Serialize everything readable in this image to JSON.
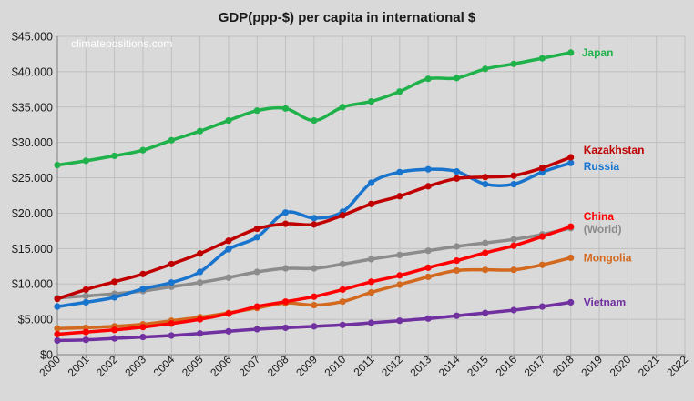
{
  "chart_data": {
    "type": "line",
    "title": "GDP(ppp-$) per capita in international $",
    "watermark": "climatepositions.com",
    "xlabel": "",
    "ylabel": "",
    "x": [
      2000,
      2001,
      2002,
      2003,
      2004,
      2005,
      2006,
      2007,
      2008,
      2009,
      2010,
      2011,
      2012,
      2013,
      2014,
      2015,
      2016,
      2017,
      2018
    ],
    "x_ticks": [
      "2000",
      "2001",
      "2002",
      "2003",
      "2004",
      "2005",
      "2006",
      "2007",
      "2008",
      "2009",
      "2010",
      "2011",
      "2012",
      "2013",
      "2014",
      "2015",
      "2016",
      "2017",
      "2018",
      "2019",
      "2020",
      "2021",
      "2022"
    ],
    "xlim": [
      2000,
      2022
    ],
    "ylim": [
      0,
      45000
    ],
    "y_ticks": [
      0,
      5000,
      10000,
      15000,
      20000,
      25000,
      30000,
      35000,
      40000,
      45000
    ],
    "y_tick_labels": [
      "$0",
      "$5.000",
      "$10.000",
      "$15.000",
      "$20.000",
      "$25.000",
      "$30.000",
      "$35.000",
      "$40.000",
      "$45.000"
    ],
    "grid": true,
    "legend": "end-labels",
    "series": [
      {
        "name": "Japan",
        "color": "#1fb24a",
        "values": [
          26800,
          27400,
          28100,
          28900,
          30300,
          31600,
          33100,
          34500,
          34800,
          33100,
          35000,
          35800,
          37200,
          39000,
          39100,
          40400,
          41100,
          41900,
          42700
        ]
      },
      {
        "name": "Kazakhstan",
        "color": "#c00000",
        "values": [
          7900,
          9200,
          10300,
          11400,
          12800,
          14300,
          16100,
          17800,
          18500,
          18400,
          19700,
          21300,
          22400,
          23800,
          24900,
          25100,
          25300,
          26400,
          27900
        ]
      },
      {
        "name": "Russia",
        "color": "#1874cd",
        "values": [
          6800,
          7400,
          8100,
          9300,
          10200,
          11700,
          14900,
          16600,
          20100,
          19300,
          20200,
          24300,
          25800,
          26200,
          25900,
          24100,
          24100,
          25800,
          27100
        ]
      },
      {
        "name": "China",
        "color": "#ff0000",
        "values": [
          2900,
          3200,
          3500,
          3900,
          4400,
          5000,
          5800,
          6800,
          7500,
          8200,
          9200,
          10300,
          11200,
          12300,
          13300,
          14400,
          15400,
          16700,
          18100
        ]
      },
      {
        "name": "(World)",
        "color": "#8c8c8c",
        "values": [
          8000,
          8300,
          8600,
          9000,
          9600,
          10200,
          10900,
          11700,
          12200,
          12200,
          12800,
          13500,
          14100,
          14700,
          15300,
          15800,
          16300,
          17000,
          17900
        ]
      },
      {
        "name": "Mongolia",
        "color": "#d2691e",
        "values": [
          3700,
          3800,
          4000,
          4300,
          4800,
          5300,
          5900,
          6600,
          7300,
          7000,
          7500,
          8800,
          9900,
          11000,
          11900,
          12000,
          12000,
          12700,
          13700
        ]
      },
      {
        "name": "Vietnam",
        "color": "#7030a0",
        "values": [
          2000,
          2100,
          2300,
          2500,
          2700,
          3000,
          3300,
          3600,
          3800,
          4000,
          4200,
          4500,
          4800,
          5100,
          5500,
          5900,
          6300,
          6800,
          7400
        ]
      }
    ]
  }
}
